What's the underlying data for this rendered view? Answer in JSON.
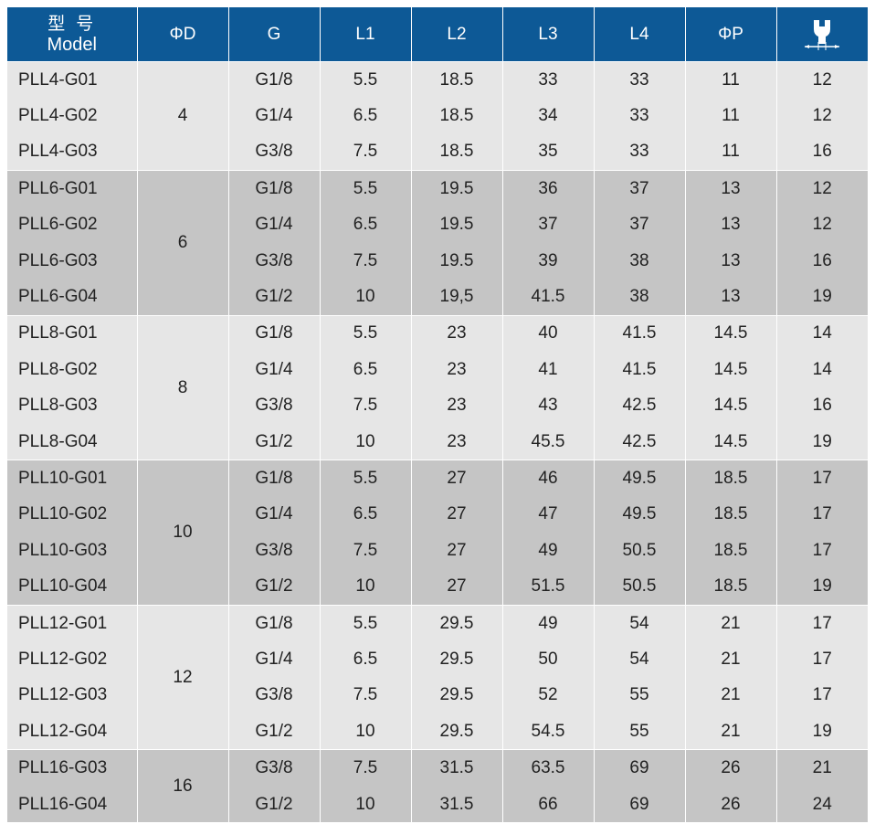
{
  "colors": {
    "header_bg": "#0d5996",
    "header_text": "#ffffff",
    "group_light": "#e6e6e6",
    "group_dark": "#c5c5c5",
    "border": "#ffffff"
  },
  "header": {
    "model_zh": "型 号",
    "model_en": "Model",
    "columns": [
      "ΦD",
      "G",
      "L1",
      "L2",
      "L3",
      "L4",
      "ΦP"
    ],
    "wrench_icon": "wrench-size-icon"
  },
  "groups": [
    {
      "diameter": "4",
      "rows": [
        {
          "model": "PLL4-G01",
          "g": "G1/8",
          "l1": "5.5",
          "l2": "18.5",
          "l3": "33",
          "l4": "33",
          "p": "11",
          "h": "12"
        },
        {
          "model": "PLL4-G02",
          "g": "G1/4",
          "l1": "6.5",
          "l2": "18.5",
          "l3": "34",
          "l4": "33",
          "p": "11",
          "h": "12"
        },
        {
          "model": "PLL4-G03",
          "g": "G3/8",
          "l1": "7.5",
          "l2": "18.5",
          "l3": "35",
          "l4": "33",
          "p": "11",
          "h": "16"
        }
      ]
    },
    {
      "diameter": "6",
      "rows": [
        {
          "model": "PLL6-G01",
          "g": "G1/8",
          "l1": "5.5",
          "l2": "19.5",
          "l3": "36",
          "l4": "37",
          "p": "13",
          "h": "12"
        },
        {
          "model": "PLL6-G02",
          "g": "G1/4",
          "l1": "6.5",
          "l2": "19.5",
          "l3": "37",
          "l4": "37",
          "p": "13",
          "h": "12"
        },
        {
          "model": "PLL6-G03",
          "g": "G3/8",
          "l1": "7.5",
          "l2": "19.5",
          "l3": "39",
          "l4": "38",
          "p": "13",
          "h": "16"
        },
        {
          "model": "PLL6-G04",
          "g": "G1/2",
          "l1": "10",
          "l2": "19,5",
          "l3": "41.5",
          "l4": "38",
          "p": "13",
          "h": "19"
        }
      ]
    },
    {
      "diameter": "8",
      "rows": [
        {
          "model": "PLL8-G01",
          "g": "G1/8",
          "l1": "5.5",
          "l2": "23",
          "l3": "40",
          "l4": "41.5",
          "p": "14.5",
          "h": "14"
        },
        {
          "model": "PLL8-G02",
          "g": "G1/4",
          "l1": "6.5",
          "l2": "23",
          "l3": "41",
          "l4": "41.5",
          "p": "14.5",
          "h": "14"
        },
        {
          "model": "PLL8-G03",
          "g": "G3/8",
          "l1": "7.5",
          "l2": "23",
          "l3": "43",
          "l4": "42.5",
          "p": "14.5",
          "h": "16"
        },
        {
          "model": "PLL8-G04",
          "g": "G1/2",
          "l1": "10",
          "l2": "23",
          "l3": "45.5",
          "l4": "42.5",
          "p": "14.5",
          "h": "19"
        }
      ]
    },
    {
      "diameter": "10",
      "rows": [
        {
          "model": "PLL10-G01",
          "g": "G1/8",
          "l1": "5.5",
          "l2": "27",
          "l3": "46",
          "l4": "49.5",
          "p": "18.5",
          "h": "17"
        },
        {
          "model": "PLL10-G02",
          "g": "G1/4",
          "l1": "6.5",
          "l2": "27",
          "l3": "47",
          "l4": "49.5",
          "p": "18.5",
          "h": "17"
        },
        {
          "model": "PLL10-G03",
          "g": "G3/8",
          "l1": "7.5",
          "l2": "27",
          "l3": "49",
          "l4": "50.5",
          "p": "18.5",
          "h": "17"
        },
        {
          "model": "PLL10-G04",
          "g": "G1/2",
          "l1": "10",
          "l2": "27",
          "l3": "51.5",
          "l4": "50.5",
          "p": "18.5",
          "h": "19"
        }
      ]
    },
    {
      "diameter": "12",
      "rows": [
        {
          "model": "PLL12-G01",
          "g": "G1/8",
          "l1": "5.5",
          "l2": "29.5",
          "l3": "49",
          "l4": "54",
          "p": "21",
          "h": "17"
        },
        {
          "model": "PLL12-G02",
          "g": "G1/4",
          "l1": "6.5",
          "l2": "29.5",
          "l3": "50",
          "l4": "54",
          "p": "21",
          "h": "17"
        },
        {
          "model": "PLL12-G03",
          "g": "G3/8",
          "l1": "7.5",
          "l2": "29.5",
          "l3": "52",
          "l4": "55",
          "p": "21",
          "h": "17"
        },
        {
          "model": "PLL12-G04",
          "g": "G1/2",
          "l1": "10",
          "l2": "29.5",
          "l3": "54.5",
          "l4": "55",
          "p": "21",
          "h": "19"
        }
      ]
    },
    {
      "diameter": "16",
      "rows": [
        {
          "model": "PLL16-G03",
          "g": "G3/8",
          "l1": "7.5",
          "l2": "31.5",
          "l3": "63.5",
          "l4": "69",
          "p": "26",
          "h": "21"
        },
        {
          "model": "PLL16-G04",
          "g": "G1/2",
          "l1": "10",
          "l2": "31.5",
          "l3": "66",
          "l4": "69",
          "p": "26",
          "h": "24"
        }
      ]
    }
  ]
}
